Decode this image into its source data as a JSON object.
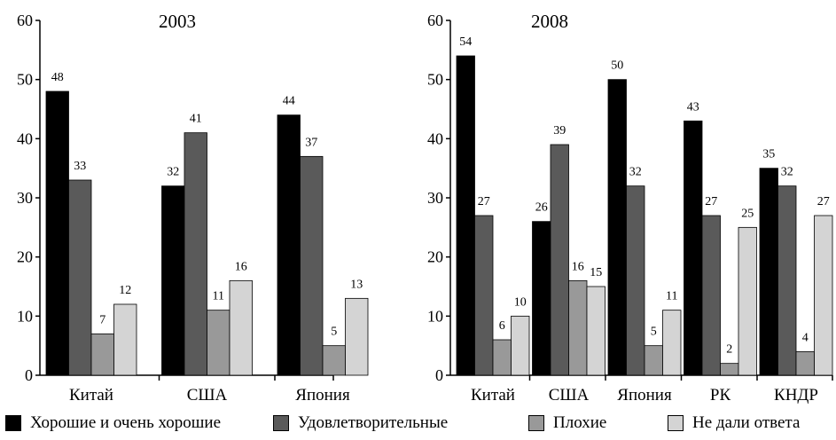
{
  "chart_data": [
    {
      "type": "bar",
      "title": "2003",
      "categories": [
        "Китай",
        "США",
        "Япония"
      ],
      "ylim": [
        0,
        60
      ],
      "yticks": [
        0,
        10,
        20,
        30,
        40,
        50,
        60
      ],
      "series": [
        {
          "name": "Хорошие и очень хорошие",
          "values": [
            48,
            32,
            44
          ]
        },
        {
          "name": "Удовлетворительные",
          "values": [
            33,
            41,
            37
          ]
        },
        {
          "name": "Плохие",
          "values": [
            7,
            11,
            5
          ]
        },
        {
          "name": "Не дали ответа",
          "values": [
            12,
            16,
            13
          ]
        }
      ]
    },
    {
      "type": "bar",
      "title": "2008",
      "categories": [
        "Китай",
        "США",
        "Япония",
        "РК",
        "КНДР"
      ],
      "ylim": [
        0,
        60
      ],
      "yticks": [
        0,
        10,
        20,
        30,
        40,
        50,
        60
      ],
      "series": [
        {
          "name": "Хорошие и очень хорошие",
          "values": [
            54,
            26,
            50,
            43,
            35
          ]
        },
        {
          "name": "Удовлетворительные",
          "values": [
            27,
            39,
            32,
            27,
            32
          ]
        },
        {
          "name": "Плохие",
          "values": [
            6,
            16,
            5,
            2,
            4
          ]
        },
        {
          "name": "Не дали ответа",
          "values": [
            10,
            15,
            11,
            25,
            27
          ]
        }
      ]
    }
  ],
  "colors": [
    "#000000",
    "#5a5a5a",
    "#999999",
    "#d4d4d4"
  ],
  "legend": [
    {
      "label": "Хорошие и очень хорошие",
      "color": "#000000"
    },
    {
      "label": "Удовлетворительные",
      "color": "#5a5a5a"
    },
    {
      "label": "Плохие",
      "color": "#999999"
    },
    {
      "label": "Не дали ответа",
      "color": "#d4d4d4"
    }
  ]
}
